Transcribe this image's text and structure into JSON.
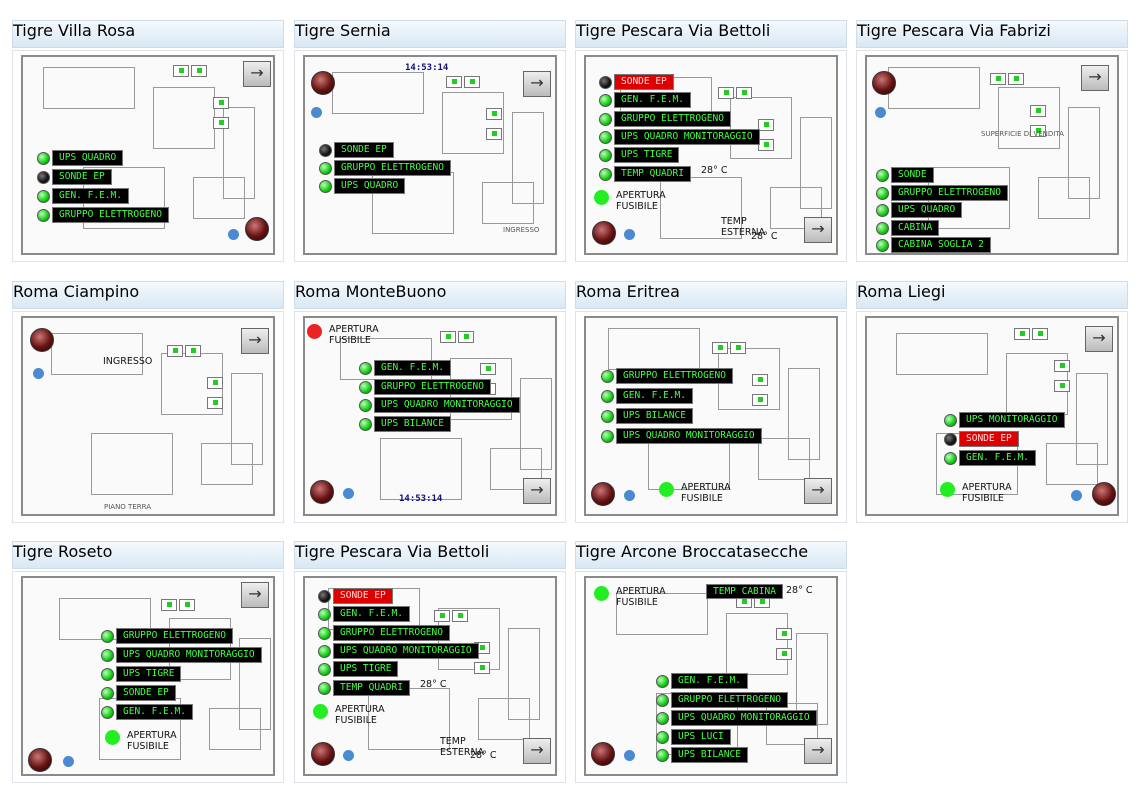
{
  "panels": [
    {
      "title": "Tigre Villa Rosa",
      "items": [
        {
          "label": "UPS QUADRO",
          "state": "ok"
        },
        {
          "label": "SONDE EP",
          "state": "off"
        },
        {
          "label": "GEN. F.E.M.",
          "state": "ok"
        },
        {
          "label": "GRUPPO ELETTROGENO",
          "state": "ok"
        }
      ],
      "notes": []
    },
    {
      "title": "Tigre Sernia",
      "items": [
        {
          "label": "SONDE EP",
          "state": "off"
        },
        {
          "label": "GRUPPO ELETTROGENO",
          "state": "ok"
        },
        {
          "label": "UPS QUADRO",
          "state": "ok"
        }
      ],
      "notes": [
        {
          "text": "14:53:14",
          "kind": "clock"
        },
        {
          "text": "INGRESSO",
          "kind": "small"
        }
      ]
    },
    {
      "title": "Tigre Pescara Via Bettoli",
      "items": [
        {
          "label": "SONDE EP",
          "state": "alarm"
        },
        {
          "label": "GEN. F.E.M.",
          "state": "ok"
        },
        {
          "label": "GRUPPO ELETTROGENO",
          "state": "ok"
        },
        {
          "label": "UPS QUADRO MONITORAGGIO",
          "state": "ok"
        },
        {
          "label": "UPS TIGRE",
          "state": "ok"
        },
        {
          "label": "TEMP QUADRI",
          "state": "ok"
        }
      ],
      "notes": [
        {
          "text": "28° C",
          "kind": "text"
        },
        {
          "text": "APERTURA FUSIBILE",
          "kind": "led-green"
        },
        {
          "text": "TEMP ESTERNA",
          "kind": "text"
        },
        {
          "text": "28° C",
          "kind": "text"
        }
      ]
    },
    {
      "title": "Tigre Pescara Via Fabrizi",
      "items": [
        {
          "label": "SONDE",
          "state": "ok"
        },
        {
          "label": "GRUPPO ELETTROGENO",
          "state": "ok"
        },
        {
          "label": "UPS QUADRO",
          "state": "ok"
        },
        {
          "label": "CABINA",
          "state": "ok"
        },
        {
          "label": "CABINA SOGLIA 2",
          "state": "ok"
        }
      ],
      "notes": [
        {
          "text": "SUPERFICIE DI VENDITA",
          "kind": "small"
        }
      ]
    },
    {
      "title": "Roma Ciampino",
      "items": [],
      "notes": [
        {
          "text": "INGRESSO",
          "kind": "text"
        },
        {
          "text": "PIANO TERRA",
          "kind": "small"
        }
      ]
    },
    {
      "title": "Roma MonteBuono",
      "items": [
        {
          "label": "GEN. F.E.M.",
          "state": "ok"
        },
        {
          "label": "GRUPPO ELETTROGENO",
          "state": "ok"
        },
        {
          "label": "UPS QUADRO MONITORAGGIO",
          "state": "ok"
        },
        {
          "label": "UPS BILANCE",
          "state": "ok"
        }
      ],
      "notes": [
        {
          "text": "APERTURA FUSIBILE",
          "kind": "led-red"
        },
        {
          "text": "14:53:14",
          "kind": "clock"
        }
      ]
    },
    {
      "title": "Roma Eritrea",
      "items": [
        {
          "label": "GRUPPO ELETTROGENO",
          "state": "ok"
        },
        {
          "label": "GEN. F.E.M.",
          "state": "ok"
        },
        {
          "label": "UPS BILANCE",
          "state": "ok"
        },
        {
          "label": "UPS QUADRO MONITORAGGIO",
          "state": "ok"
        }
      ],
      "notes": [
        {
          "text": "APERTURA FUSIBILE",
          "kind": "led-green"
        }
      ]
    },
    {
      "title": "Roma Liegi",
      "items": [
        {
          "label": "UPS MONITORAGGIO",
          "state": "ok"
        },
        {
          "label": "SONDE EP",
          "state": "alarm"
        },
        {
          "label": "GEN. F.E.M.",
          "state": "ok"
        }
      ],
      "notes": [
        {
          "text": "APERTURA FUSIBILE",
          "kind": "led-green"
        }
      ]
    },
    {
      "title": "Tigre Roseto",
      "items": [
        {
          "label": "GRUPPO ELETTROGENO",
          "state": "ok"
        },
        {
          "label": "UPS QUADRO MONITORAGGIO",
          "state": "ok"
        },
        {
          "label": "UPS TIGRE",
          "state": "ok"
        },
        {
          "label": "SONDE EP",
          "state": "ok"
        },
        {
          "label": "GEN. F.E.M.",
          "state": "ok"
        }
      ],
      "notes": [
        {
          "text": "APERTURA FUSIBILE",
          "kind": "led-green"
        }
      ]
    },
    {
      "title": "Tigre Pescara Via Bettoli",
      "items": [
        {
          "label": "SONDE EP",
          "state": "alarm"
        },
        {
          "label": "GEN. F.E.M.",
          "state": "ok"
        },
        {
          "label": "GRUPPO ELETTROGENO",
          "state": "ok"
        },
        {
          "label": "UPS QUADRO MONITORAGGIO",
          "state": "ok"
        },
        {
          "label": "UPS TIGRE",
          "state": "ok"
        },
        {
          "label": "TEMP QUADRI",
          "state": "ok"
        }
      ],
      "notes": [
        {
          "text": "28° C",
          "kind": "text"
        },
        {
          "text": "APERTURA FUSIBILE",
          "kind": "led-green"
        },
        {
          "text": "TEMP ESTERNA",
          "kind": "text"
        },
        {
          "text": "28° C",
          "kind": "text"
        }
      ]
    },
    {
      "title": "Tigre Arcone Broccatasecche",
      "items": [
        {
          "label": "GEN. F.E.M.",
          "state": "ok"
        },
        {
          "label": "GRUPPO ELETTROGENO",
          "state": "ok"
        },
        {
          "label": "UPS QUADRO MONITORAGGIO",
          "state": "ok"
        },
        {
          "label": "UPS LUCI",
          "state": "ok"
        },
        {
          "label": "UPS BILANCE",
          "state": "ok"
        }
      ],
      "notes": [
        {
          "text": "TEMP CABINA",
          "kind": "tag"
        },
        {
          "text": "28° C",
          "kind": "text"
        },
        {
          "text": "APERTURA FUSIBILE",
          "kind": "led-green"
        }
      ]
    }
  ]
}
